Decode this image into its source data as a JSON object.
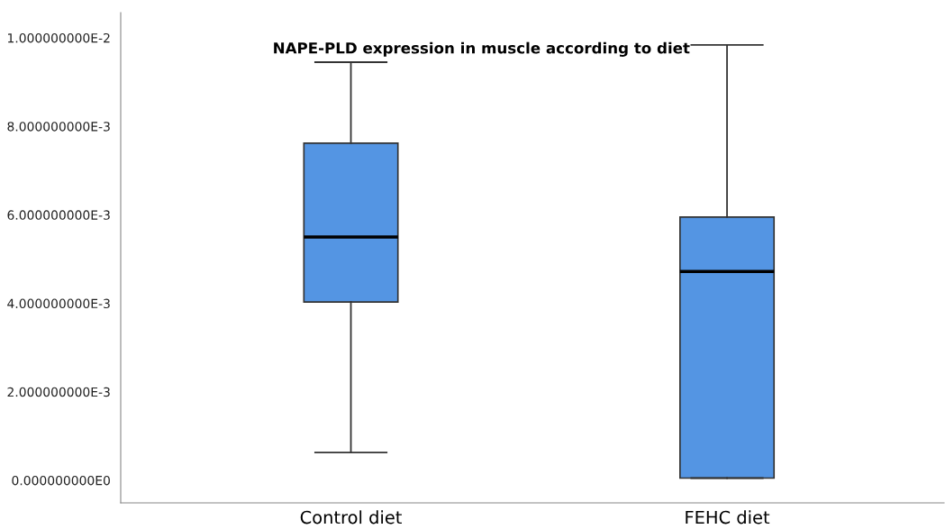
{
  "chart_data": {
    "type": "box",
    "title": "NAPE-PLD expression in muscle according to diet",
    "categories": [
      "Control diet",
      "FEHC diet"
    ],
    "boxes": [
      {
        "low": 0.00063,
        "q1": 0.00403,
        "median": 0.0055,
        "q3": 0.00762,
        "high": 0.00945
      },
      {
        "low": 5e-05,
        "q1": 5e-05,
        "median": 0.00472,
        "q3": 0.00595,
        "high": 0.00984
      }
    ],
    "color": "#5495e3",
    "ylim": [
      -0.00051,
      0.01057
    ],
    "yticks": [
      {
        "value": 0,
        "label": "0.000000000E0"
      },
      {
        "value": 0.002,
        "label": "2.000000000E-3"
      },
      {
        "value": 0.004,
        "label": "4.000000000E-3"
      },
      {
        "value": 0.006,
        "label": "6.000000000E-3"
      },
      {
        "value": 0.008,
        "label": "8.000000000E-3"
      },
      {
        "value": 0.01,
        "label": "1.000000000E-2"
      }
    ],
    "grid": false
  }
}
